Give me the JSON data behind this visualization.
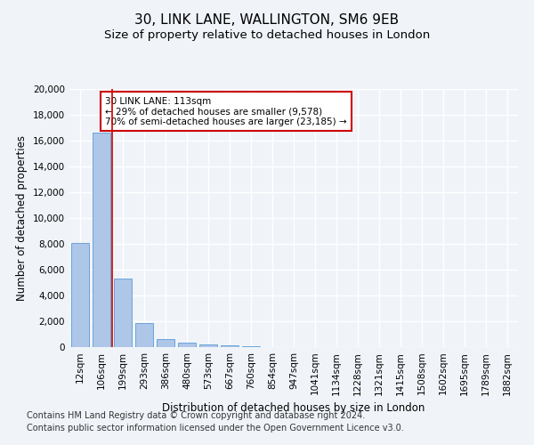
{
  "title_line1": "30, LINK LANE, WALLINGTON, SM6 9EB",
  "title_line2": "Size of property relative to detached houses in London",
  "xlabel": "Distribution of detached houses by size in London",
  "ylabel": "Number of detached properties",
  "categories": [
    "12sqm",
    "106sqm",
    "199sqm",
    "293sqm",
    "386sqm",
    "480sqm",
    "573sqm",
    "667sqm",
    "760sqm",
    "854sqm",
    "947sqm",
    "1041sqm",
    "1134sqm",
    "1228sqm",
    "1321sqm",
    "1415sqm",
    "1508sqm",
    "1602sqm",
    "1695sqm",
    "1789sqm",
    "1882sqm"
  ],
  "values": [
    8100,
    16600,
    5300,
    1850,
    650,
    340,
    180,
    130,
    100,
    0,
    0,
    0,
    0,
    0,
    0,
    0,
    0,
    0,
    0,
    0,
    0
  ],
  "bar_color": "#aec6e8",
  "bar_edge_color": "#5b9bd5",
  "vline_color": "#cc0000",
  "annotation_text": "30 LINK LANE: 113sqm\n← 29% of detached houses are smaller (9,578)\n70% of semi-detached houses are larger (23,185) →",
  "annotation_box_facecolor": "#ffffff",
  "annotation_box_edgecolor": "#cc0000",
  "ylim": [
    0,
    20000
  ],
  "yticks": [
    0,
    2000,
    4000,
    6000,
    8000,
    10000,
    12000,
    14000,
    16000,
    18000,
    20000
  ],
  "footnote1": "Contains HM Land Registry data © Crown copyright and database right 2024.",
  "footnote2": "Contains public sector information licensed under the Open Government Licence v3.0.",
  "bg_color": "#f0f4f9",
  "grid_color": "#ffffff",
  "title_fontsize": 11,
  "subtitle_fontsize": 9.5,
  "axis_label_fontsize": 8.5,
  "tick_fontsize": 7.5,
  "annotation_fontsize": 7.5,
  "footnote_fontsize": 7
}
